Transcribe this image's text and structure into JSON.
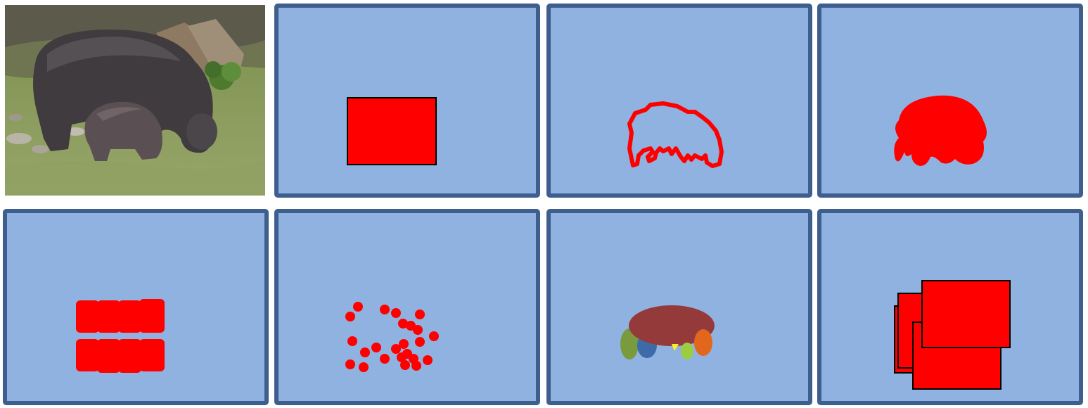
{
  "colors": {
    "panel_fill": "#8fb2e0",
    "panel_border": "#3e5f8e",
    "mask_red": "#ff0000",
    "mask_outline": "#000000",
    "part_body": "#943a3a",
    "part_leg_green": "#7a9a3e",
    "part_leg_blue": "#3d6ba8",
    "part_head": "#e2671c",
    "part_small_yellow": "#ffee22",
    "part_small_lime": "#9ccc40"
  },
  "panels": [
    {
      "id": "photo",
      "icon": "hippo-photo"
    },
    {
      "id": "bounding-box",
      "icon": "rectangle-mask"
    },
    {
      "id": "polygon-outline",
      "icon": "outline-mask"
    },
    {
      "id": "segmentation-mask",
      "icon": "blob-mask"
    },
    {
      "id": "superpixel-grid",
      "icon": "grid-mask"
    },
    {
      "id": "point-clicks",
      "icon": "dots-mask"
    },
    {
      "id": "part-segments",
      "icon": "parts-mask"
    },
    {
      "id": "multiple-boxes",
      "icon": "boxes-mask"
    }
  ]
}
